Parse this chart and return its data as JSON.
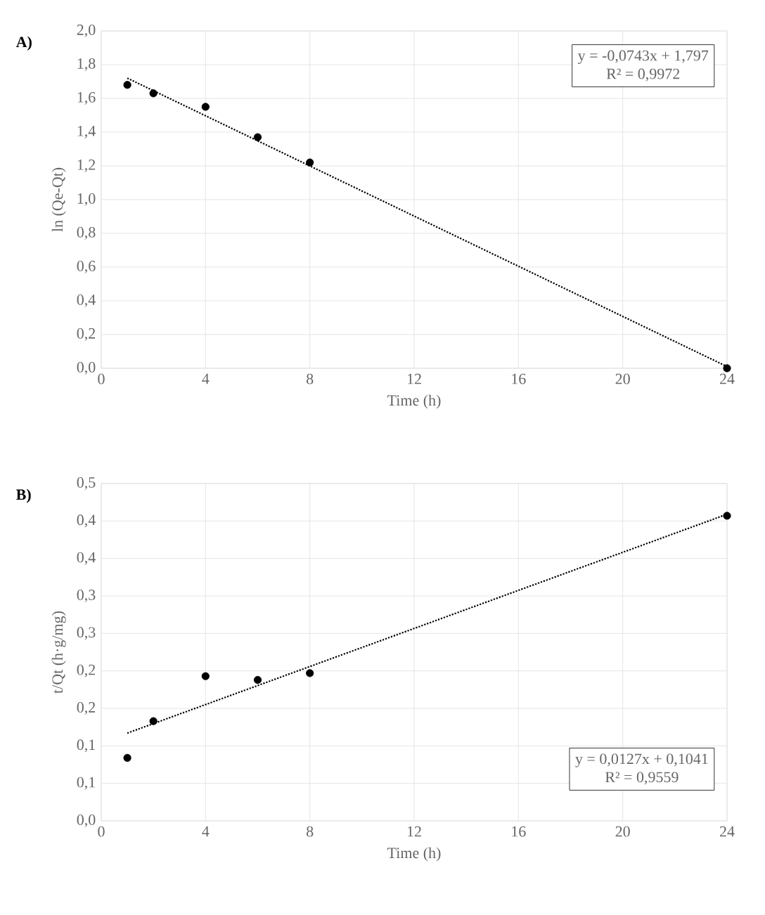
{
  "chart_data": [
    {
      "type": "scatter",
      "title": "A)",
      "xlabel": "Time (h)",
      "ylabel": "ln (Qe-Qt)",
      "annotations": [
        "y = -0,0743x  + 1,797",
        "R² = 0,9972"
      ],
      "xlim": [
        0,
        24
      ],
      "xticks": [
        0,
        4,
        8,
        12,
        16,
        20,
        24
      ],
      "ylim": [
        0,
        2
      ],
      "yticks": [
        {
          "value": 0,
          "label": "0,0"
        },
        {
          "value": 0.2,
          "label": "0,2"
        },
        {
          "value": 0.4,
          "label": "0,4"
        },
        {
          "value": 0.6,
          "label": "0,6"
        },
        {
          "value": 0.8,
          "label": "0,8"
        },
        {
          "value": 1.0,
          "label": "1,0"
        },
        {
          "value": 1.2,
          "label": "1,2"
        },
        {
          "value": 1.4,
          "label": "1,4"
        },
        {
          "value": 1.6,
          "label": "1,6"
        },
        {
          "value": 1.8,
          "label": "1,8"
        },
        {
          "value": 2.0,
          "label": "2,0"
        }
      ],
      "grid": true,
      "series": [
        {
          "color": "#000000",
          "marker": "circle",
          "x": [
            1,
            2,
            4,
            6,
            8,
            24
          ],
          "values": [
            1.68,
            1.63,
            1.55,
            1.37,
            1.22,
            0.0
          ]
        },
        {
          "type": "line",
          "color": "#000000",
          "marker": "none",
          "line_style": "dotted",
          "x": [
            1,
            24
          ],
          "values": [
            1.72,
            0.01
          ]
        }
      ]
    },
    {
      "type": "scatter",
      "title": "B)",
      "xlabel": "Time (h)",
      "ylabel": "t/Qt (h·g/mg)",
      "annotations": [
        "y = 0,0127x  + 0,1041",
        "R² = 0,9559"
      ],
      "xlim": [
        0,
        24
      ],
      "xticks": [
        0,
        4,
        8,
        12,
        16,
        20,
        24
      ],
      "ylim": [
        0,
        0.45
      ],
      "yticks": [
        {
          "value": 0,
          "label": "0,0"
        },
        {
          "value": 0.05,
          "label": "0,1"
        },
        {
          "value": 0.1,
          "label": "0,1"
        },
        {
          "value": 0.15,
          "label": "0,2"
        },
        {
          "value": 0.2,
          "label": "0,2"
        },
        {
          "value": 0.25,
          "label": "0,3"
        },
        {
          "value": 0.3,
          "label": "0,3"
        },
        {
          "value": 0.35,
          "label": "0,4"
        },
        {
          "value": 0.4,
          "label": "0,4"
        },
        {
          "value": 0.45,
          "label": "0,5"
        }
      ],
      "grid": true,
      "series": [
        {
          "color": "#000000",
          "marker": "circle",
          "x": [
            1,
            2,
            4,
            6,
            8,
            24
          ],
          "values": [
            0.084,
            0.133,
            0.193,
            0.188,
            0.197,
            0.407
          ]
        },
        {
          "type": "line",
          "color": "#000000",
          "marker": "none",
          "line_style": "dotted",
          "x": [
            1,
            24
          ],
          "values": [
            0.117,
            0.409
          ]
        }
      ]
    }
  ]
}
